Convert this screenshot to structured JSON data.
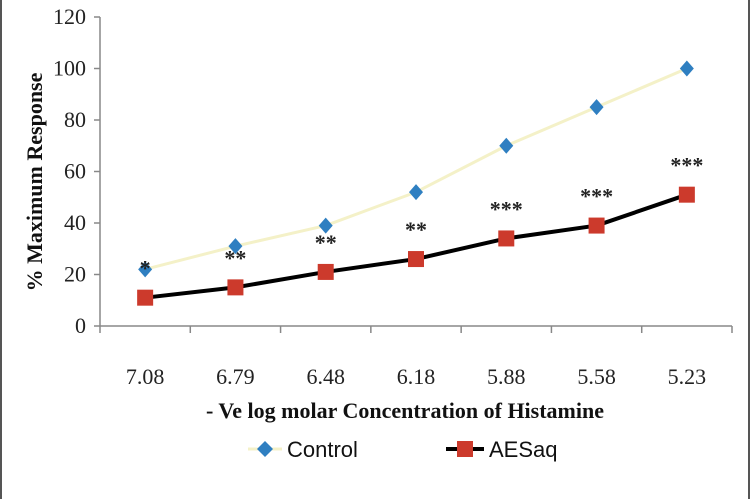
{
  "chart_data": {
    "type": "line",
    "title": "",
    "xlabel": "- Ve log molar Concentration of Histamine",
    "ylabel": "% Maximum Response",
    "categories": [
      "7.08",
      "6.79",
      "6.48",
      "6.18",
      "5.88",
      "5.58",
      "5.23"
    ],
    "ylim": [
      0,
      120
    ],
    "yticks": [
      0,
      20,
      40,
      60,
      80,
      100,
      120
    ],
    "series": [
      {
        "name": "Control",
        "values": [
          22,
          31,
          39,
          52,
          70,
          85,
          100
        ],
        "marker": "diamond",
        "line_color": "#f4f1c8",
        "marker_color": "#2f7fc1"
      },
      {
        "name": "AESaq",
        "values": [
          11,
          15,
          21,
          26,
          34,
          39,
          51
        ],
        "marker": "square",
        "line_color": "#000000",
        "marker_color": "#cc3a2c"
      }
    ],
    "significance": [
      "*",
      "**",
      "**",
      "**",
      "***",
      "***",
      "***"
    ],
    "legend_position": "bottom",
    "grid": false
  }
}
